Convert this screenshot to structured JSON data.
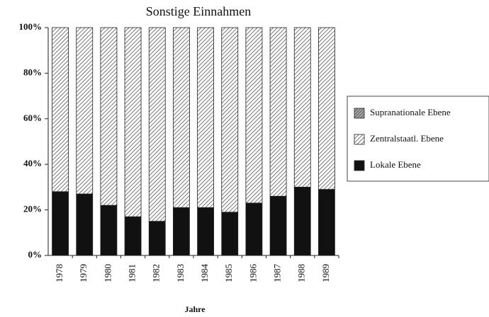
{
  "chart_data": {
    "type": "stacked_bar",
    "title": "Sonstige Einnahmen",
    "x_label": "Jahre",
    "categories": [
      "1978",
      "1979",
      "1980",
      "1981",
      "1982",
      "1983",
      "1984",
      "1985",
      "1986",
      "1987",
      "1988",
      "1989"
    ],
    "series": [
      {
        "name": "Lokale Ebene",
        "color": "#111111",
        "values": [
          28,
          27,
          22,
          17,
          15,
          21,
          21,
          19,
          23,
          26,
          30,
          29
        ]
      },
      {
        "name": "Zentralstaatl. Ebene",
        "color": "#555555",
        "values": [
          72,
          73,
          78,
          83,
          85,
          79,
          79,
          81,
          77,
          74,
          70,
          71
        ]
      },
      {
        "name": "Supranationale Ebene",
        "color": "#333333",
        "values": [
          0,
          0,
          0,
          0,
          0,
          0,
          0,
          0,
          0,
          0,
          0,
          0
        ]
      }
    ],
    "ylim": [
      0,
      100
    ],
    "yticks": [
      {
        "value": 0,
        "label": "0%"
      },
      {
        "value": 20,
        "label": "20%"
      },
      {
        "value": 40,
        "label": "40%"
      },
      {
        "value": 60,
        "label": "60%"
      },
      {
        "value": 80,
        "label": "80%"
      },
      {
        "value": 100,
        "label": "100%"
      }
    ],
    "legend": "right"
  }
}
